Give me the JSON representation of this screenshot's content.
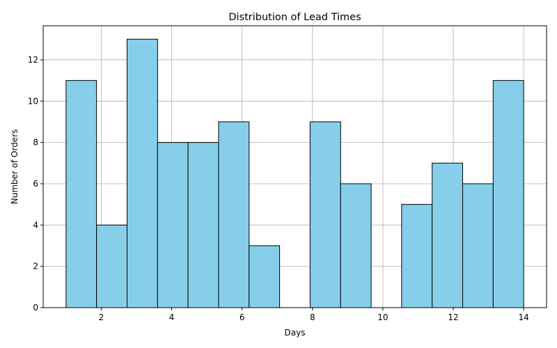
{
  "chart_data": {
    "type": "bar",
    "title": "Distribution of Lead Times",
    "xlabel": "Days",
    "ylabel": "Number of Orders",
    "bins": [
      {
        "start": 1.0,
        "end": 1.8667,
        "count": 11
      },
      {
        "start": 1.8667,
        "end": 2.7333,
        "count": 4
      },
      {
        "start": 2.7333,
        "end": 3.6,
        "count": 13
      },
      {
        "start": 3.6,
        "end": 4.4667,
        "count": 8
      },
      {
        "start": 4.4667,
        "end": 5.3333,
        "count": 8
      },
      {
        "start": 5.3333,
        "end": 6.2,
        "count": 9
      },
      {
        "start": 6.2,
        "end": 7.0667,
        "count": 3
      },
      {
        "start": 7.0667,
        "end": 7.9333,
        "count": 0
      },
      {
        "start": 7.9333,
        "end": 8.8,
        "count": 9
      },
      {
        "start": 8.8,
        "end": 9.6667,
        "count": 6
      },
      {
        "start": 9.6667,
        "end": 10.5333,
        "count": 0
      },
      {
        "start": 10.5333,
        "end": 11.4,
        "count": 5
      },
      {
        "start": 11.4,
        "end": 12.2667,
        "count": 7
      },
      {
        "start": 12.2667,
        "end": 13.1333,
        "count": 6
      },
      {
        "start": 13.1333,
        "end": 14.0,
        "count": 11
      }
    ],
    "xlim": [
      0.35,
      14.65
    ],
    "ylim": [
      0,
      13.65
    ],
    "xticks": [
      2,
      4,
      6,
      8,
      10,
      12,
      14
    ],
    "yticks": [
      0,
      2,
      4,
      6,
      8,
      10,
      12
    ],
    "grid": true,
    "bar_color": "#87ceeb",
    "edge_color": "#000000",
    "grid_color": "#b0b0b0"
  }
}
